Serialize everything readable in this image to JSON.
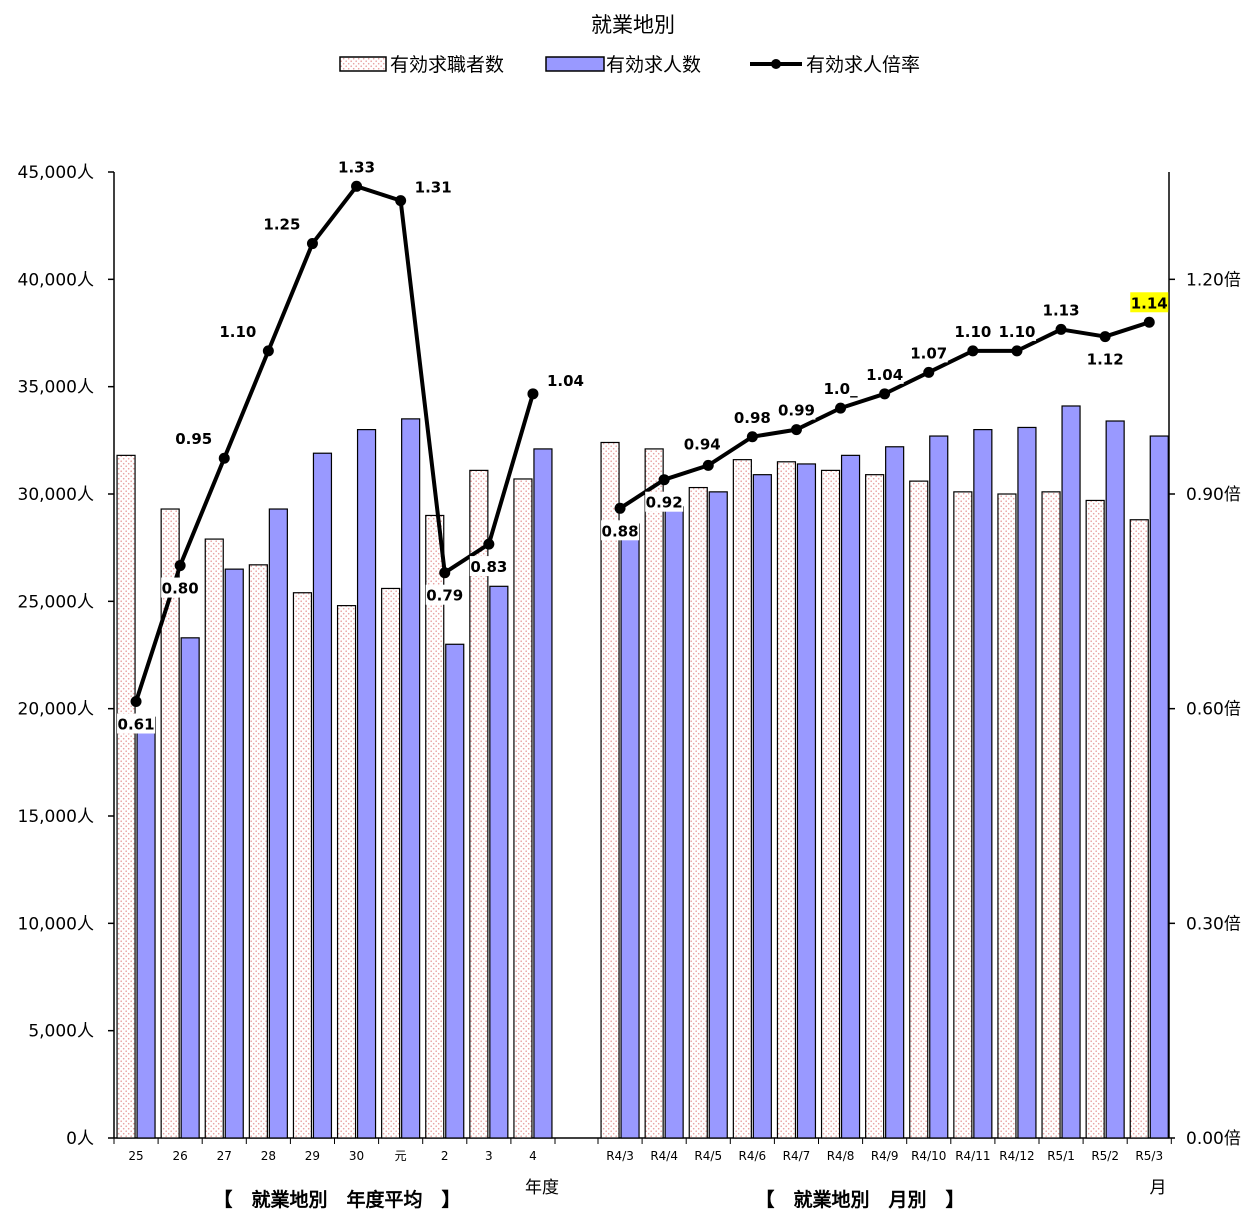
{
  "chart_data": {
    "type": "bar",
    "title": "就業地別",
    "legend": {
      "position": "top-center",
      "items": [
        {
          "name": "有効求職者数",
          "kind": "bar",
          "style": "dotted-pink"
        },
        {
          "name": "有効求人数",
          "kind": "bar",
          "style": "solid-blue"
        },
        {
          "name": "有効求人倍率",
          "kind": "line",
          "style": "black-line-dots"
        }
      ]
    },
    "left_axis": {
      "min": 0,
      "max": 45000,
      "step": 5000,
      "tick_labels": [
        "0人",
        "5,000人",
        "10,000人",
        "15,000人",
        "20,000人",
        "25,000人",
        "30,000人",
        "35,000人",
        "40,000人",
        "45,000人"
      ]
    },
    "right_axis": {
      "min": 0,
      "max": 1.35,
      "step": 0.3,
      "tick_labels": [
        "0.00倍",
        "0.30倍",
        "0.60倍",
        "0.90倍",
        "1.20倍"
      ]
    },
    "groups": [
      {
        "section_label": "【　就業地別　年度平均　】",
        "unit_label": "年度",
        "categories": [
          "25",
          "26",
          "27",
          "28",
          "29",
          "30",
          "元",
          "2",
          "3",
          "4"
        ],
        "seekers": [
          31800,
          29300,
          27900,
          26700,
          25400,
          24800,
          25600,
          29000,
          31100,
          30700
        ],
        "openings": [
          19600,
          23300,
          26500,
          29300,
          31900,
          33000,
          33500,
          23000,
          25700,
          32100
        ],
        "ratio": [
          0.61,
          0.8,
          0.95,
          1.1,
          1.25,
          1.33,
          1.31,
          0.79,
          0.83,
          1.04
        ],
        "ratio_labels": [
          "0.61",
          "0.80",
          "0.95",
          "1.10",
          "1.25",
          "1.33",
          "1.31",
          "0.79",
          "0.83",
          "1.04"
        ]
      },
      {
        "section_label": "【　就業地別　月別　】",
        "unit_label": "月",
        "categories": [
          "R4/3",
          "R4/4",
          "R4/5",
          "R4/6",
          "R4/7",
          "R4/8",
          "R4/9",
          "R4/10",
          "R4/11",
          "R4/12",
          "R5/1",
          "R5/2",
          "R5/3"
        ],
        "seekers": [
          32400,
          32100,
          30300,
          31600,
          31500,
          31100,
          30900,
          30600,
          30100,
          30000,
          30100,
          29700,
          28800
        ],
        "openings": [
          28600,
          29400,
          30100,
          30900,
          31400,
          31800,
          32200,
          32700,
          33000,
          33100,
          34100,
          33400,
          32700
        ],
        "ratio": [
          0.88,
          0.92,
          0.94,
          0.98,
          0.99,
          1.02,
          1.04,
          1.07,
          1.1,
          1.1,
          1.13,
          1.12,
          1.14
        ],
        "ratio_labels": [
          "0.88",
          "0.92",
          "0.94",
          "0.98",
          "0.99",
          "1.0_",
          "1.04",
          "1.07",
          "1.10",
          "1.10",
          "1.13",
          "1.12",
          "1.14"
        ],
        "highlight_last": true
      }
    ],
    "colors": {
      "seekers_fill": "#ffffff",
      "seekers_dots": "#e8a0a0",
      "openings_fill": "#9999ff",
      "line": "#000000",
      "highlight": "#ffff00"
    }
  }
}
